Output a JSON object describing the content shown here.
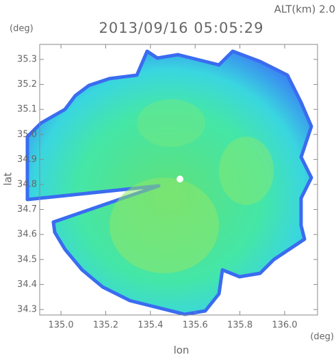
{
  "chart_data": {
    "type": "heatmap",
    "title": "2013/09/16 05:05:29",
    "annotation": "ALT(km) 2.0",
    "x_unit": "(deg)",
    "y_unit": "(deg)",
    "x_label": "lon",
    "y_label": "lat",
    "xlim": [
      134.905,
      136.147
    ],
    "ylim": [
      34.278,
      35.36
    ],
    "xticks": [
      {
        "value": 135.0,
        "label": "135.0"
      },
      135.2,
      135.4,
      135.6,
      135.8,
      {
        "value": 136.0,
        "label": "136.0"
      }
    ],
    "yticks": [
      34.3,
      34.4,
      34.5,
      34.6,
      34.7,
      34.8,
      34.9,
      {
        "value": 35.0,
        "label": "35.0"
      },
      35.1,
      35.2,
      35.3
    ]
  }
}
